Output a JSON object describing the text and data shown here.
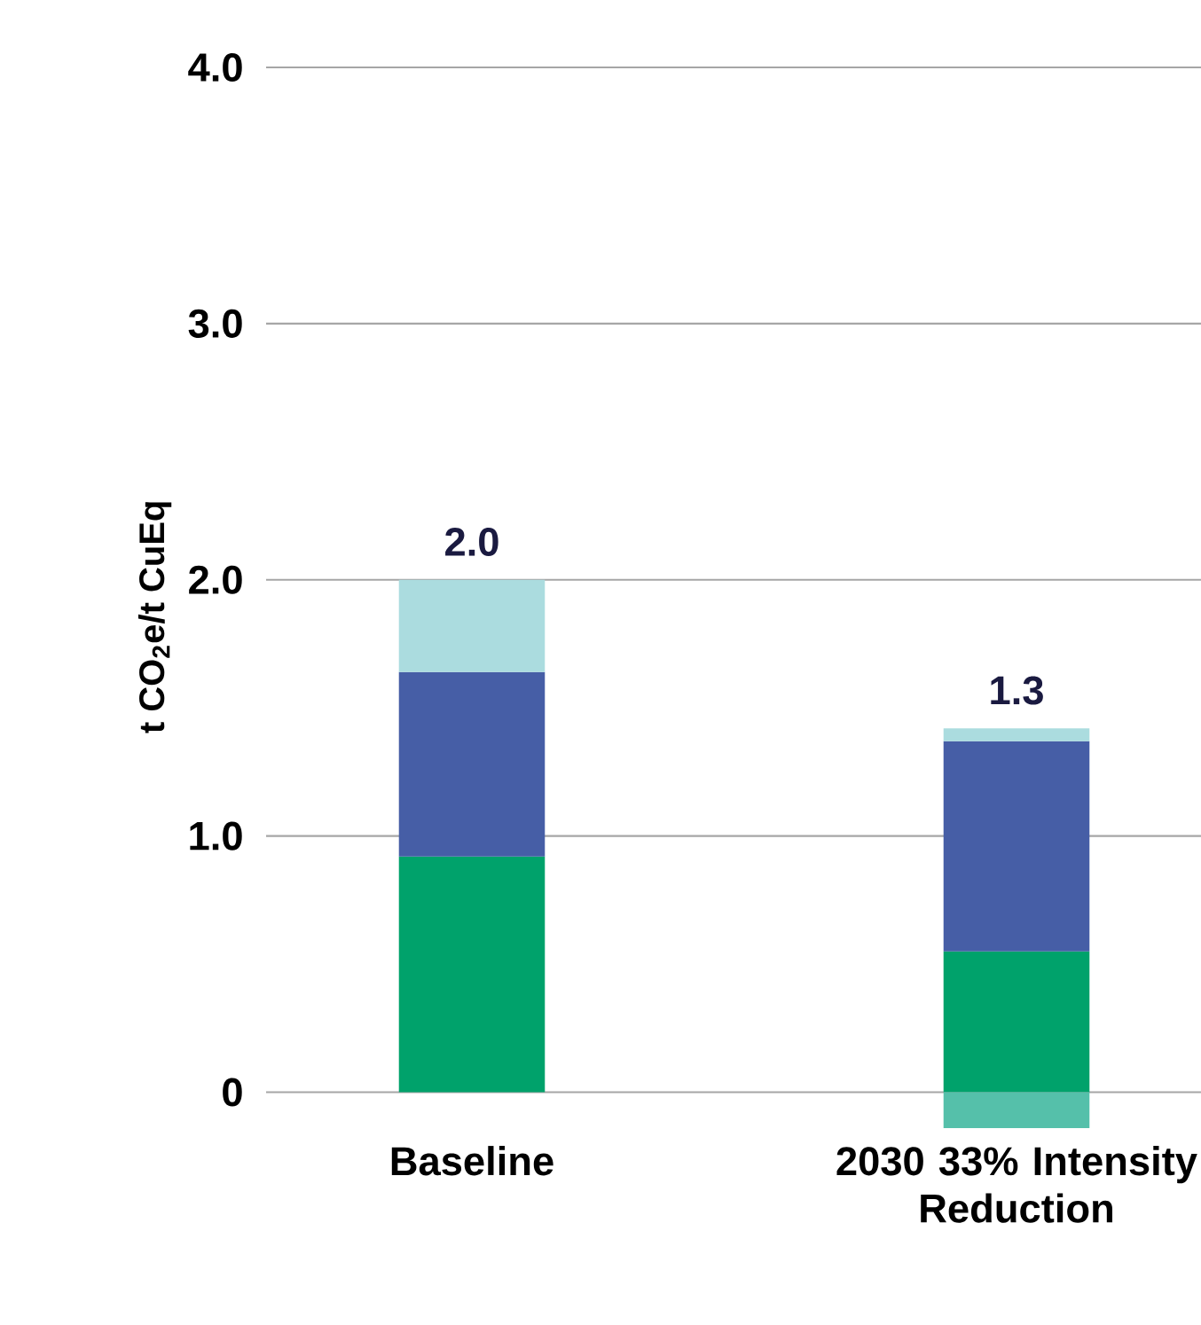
{
  "chart_data": {
    "type": "bar",
    "stacked": true,
    "ylabel": "t CO$_{2}$e/t CuEq",
    "categories": [
      "Baseline",
      "2030 33% Intensity Reduction"
    ],
    "series": [
      {
        "color": "#00a26b",
        "values": [
          0.92,
          0.55
        ]
      },
      {
        "color": "#465ea6",
        "values": [
          0.72,
          0.82
        ]
      },
      {
        "color": "#abdcdf",
        "values": [
          0.36,
          0.05
        ]
      },
      {
        "color": "#55c0aa",
        "values": [
          null,
          -0.14
        ]
      }
    ],
    "totals": [
      "2.0",
      "1.3"
    ],
    "ylim": [
      -0.14,
      4
    ],
    "yticks": [
      0,
      {
        "value": 1,
        "label": "1.0"
      },
      {
        "value": 2,
        "label": "2.0"
      },
      {
        "value": 3,
        "label": "3.0"
      },
      {
        "value": 4,
        "label": "4.0"
      }
    ],
    "grid": "y"
  }
}
